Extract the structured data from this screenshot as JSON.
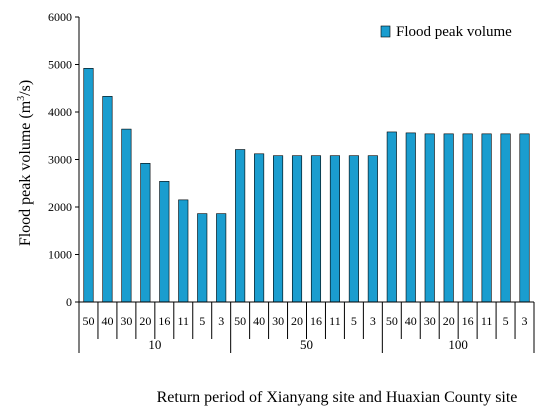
{
  "chart_data": {
    "type": "bar",
    "ylabel": "Flood peak volume",
    "ylabel_unit_base": "(m",
    "ylabel_unit_sup": "3",
    "ylabel_unit_tail": "/s)",
    "xlabel": "Return period of Xianyang site and Huaxian County site",
    "ylim": [
      0,
      6000
    ],
    "yticks": [
      0,
      1000,
      2000,
      3000,
      4000,
      5000,
      6000
    ],
    "grid": false,
    "legend_position": "top-right",
    "series": [
      {
        "name": "Flood peak volume",
        "color": "#1a9dcf",
        "values": [
          4920,
          4330,
          3640,
          2920,
          2540,
          2150,
          1860,
          1860,
          3210,
          3120,
          3080,
          3080,
          3080,
          3080,
          3080,
          3080,
          3580,
          3560,
          3540,
          3540,
          3540,
          3540,
          3540,
          3540
        ]
      }
    ],
    "groups": [
      {
        "label": "10",
        "categories": [
          "50",
          "40",
          "30",
          "20",
          "16",
          "11",
          "5",
          "3"
        ]
      },
      {
        "label": "50",
        "categories": [
          "50",
          "40",
          "30",
          "20",
          "16",
          "11",
          "5",
          "3"
        ]
      },
      {
        "label": "100",
        "categories": [
          "50",
          "40",
          "30",
          "20",
          "16",
          "11",
          "5",
          "3"
        ]
      }
    ]
  }
}
